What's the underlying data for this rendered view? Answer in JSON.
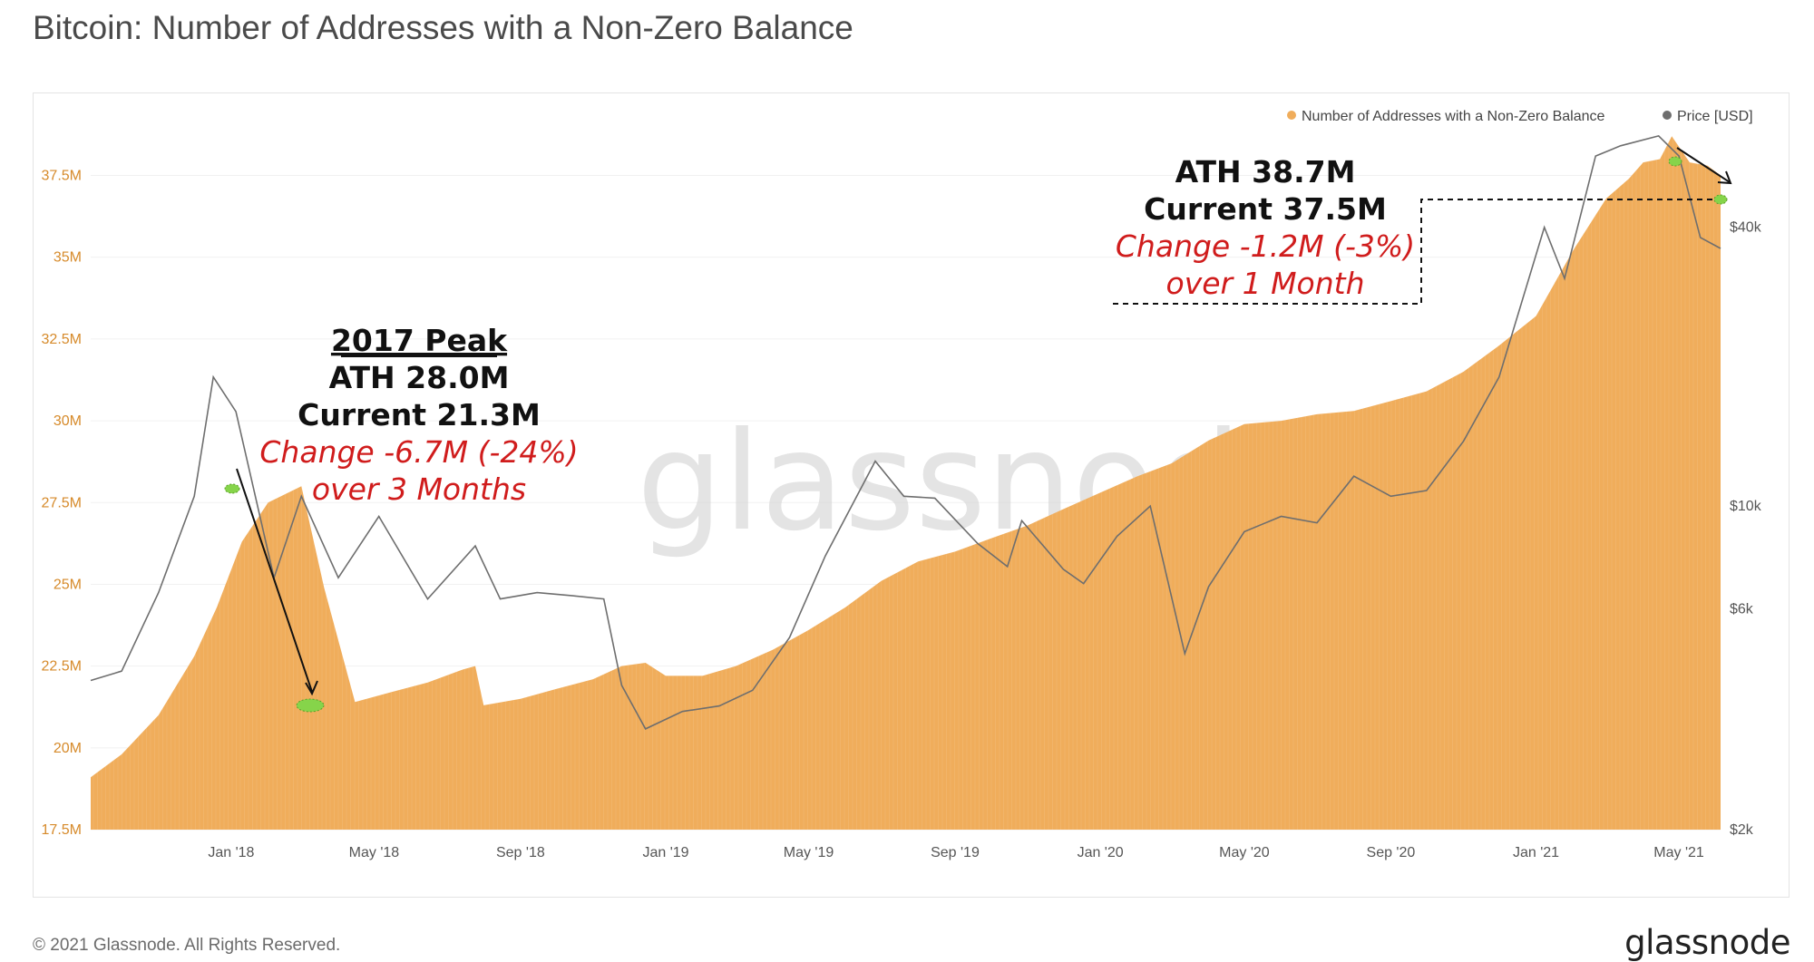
{
  "title": "Bitcoin: Number of Addresses with a Non-Zero Balance",
  "footer": {
    "copyright": "© 2021 Glassnode. All Rights Reserved.",
    "logo": "glassnode"
  },
  "watermark": "glassnode",
  "colors": {
    "area": "#f0ad5b",
    "price": "#6e6e6e",
    "marker": "#86d44a",
    "accent_red": "#d01c1c"
  },
  "chart_data": {
    "type": "area",
    "title": "Bitcoin: Number of Addresses with a Non-Zero Balance",
    "legend": {
      "position": "top-right",
      "items": [
        "Number of Addresses with a Non-Zero Balance",
        "Price [USD]"
      ]
    },
    "grid": true,
    "x_tick_labels": [
      "Jan '18",
      "May '18",
      "Sep '18",
      "Jan '19",
      "May '19",
      "Sep '19",
      "Jan '20",
      "May '20",
      "Sep '20",
      "Jan '21",
      "May '21"
    ],
    "y_left_tick_labels": [
      "17.5M",
      "20M",
      "22.5M",
      "25M",
      "27.5M",
      "30M",
      "32.5M",
      "35M",
      "37.5M"
    ],
    "y_left_range": [
      17500000,
      38900000
    ],
    "y_right_tick_labels": [
      "$2k",
      "$6k",
      "$10k",
      "$40k"
    ],
    "y_right_scale": "log",
    "y_right_range": [
      2000,
      65000
    ],
    "series": [
      {
        "name": "Number of Addresses with a Non-Zero Balance",
        "axis": "left",
        "x": [
          "2017-09-05",
          "2017-10-01",
          "2017-11-01",
          "2017-12-01",
          "2017-12-20",
          "2018-01-10",
          "2018-02-01",
          "2018-03-01",
          "2018-03-20",
          "2018-04-15",
          "2018-05-15",
          "2018-06-15",
          "2018-07-15",
          "2018-07-25",
          "2018-08-01",
          "2018-09-01",
          "2018-10-01",
          "2018-11-01",
          "2018-11-25",
          "2018-12-15",
          "2019-01-01",
          "2019-02-01",
          "2019-03-01",
          "2019-04-01",
          "2019-05-01",
          "2019-06-01",
          "2019-07-01",
          "2019-08-01",
          "2019-09-01",
          "2019-10-01",
          "2019-11-01",
          "2019-12-01",
          "2020-01-01",
          "2020-02-01",
          "2020-03-01",
          "2020-04-01",
          "2020-05-01",
          "2020-06-01",
          "2020-07-01",
          "2020-08-01",
          "2020-09-01",
          "2020-10-01",
          "2020-11-01",
          "2020-12-01",
          "2021-01-01",
          "2021-02-01",
          "2021-03-01",
          "2021-03-20",
          "2021-04-01",
          "2021-04-15",
          "2021-04-25",
          "2021-05-10",
          "2021-05-25",
          "2021-06-05"
        ],
        "values": [
          19100000,
          19800000,
          21000000,
          22800000,
          24300000,
          26300000,
          27500000,
          28000000,
          24900000,
          21400000,
          21700000,
          22000000,
          22400000,
          22500000,
          21300000,
          21500000,
          21800000,
          22100000,
          22500000,
          22600000,
          22200000,
          22200000,
          22500000,
          23000000,
          23600000,
          24300000,
          25100000,
          25700000,
          26000000,
          26400000,
          26800000,
          27300000,
          27800000,
          28300000,
          28700000,
          29400000,
          29900000,
          30000000,
          30200000,
          30300000,
          30600000,
          30900000,
          31500000,
          32300000,
          33200000,
          35200000,
          36800000,
          37400000,
          37900000,
          38000000,
          38700000,
          37900000,
          37800000,
          37500000
        ]
      },
      {
        "name": "Price [USD]",
        "axis": "right",
        "x": [
          "2017-09-05",
          "2017-10-01",
          "2017-11-01",
          "2017-12-01",
          "2017-12-17",
          "2018-01-05",
          "2018-02-06",
          "2018-03-01",
          "2018-04-01",
          "2018-05-05",
          "2018-06-15",
          "2018-07-25",
          "2018-08-15",
          "2018-09-15",
          "2018-10-15",
          "2018-11-10",
          "2018-11-25",
          "2018-12-15",
          "2019-01-15",
          "2019-02-15",
          "2019-03-15",
          "2019-04-15",
          "2019-05-15",
          "2019-06-26",
          "2019-07-20",
          "2019-08-15",
          "2019-09-20",
          "2019-10-15",
          "2019-10-27",
          "2019-12-01",
          "2019-12-18",
          "2020-01-15",
          "2020-02-12",
          "2020-03-12",
          "2020-04-01",
          "2020-05-01",
          "2020-06-01",
          "2020-07-01",
          "2020-08-01",
          "2020-09-01",
          "2020-10-01",
          "2020-11-01",
          "2020-12-01",
          "2021-01-08",
          "2021-01-25",
          "2021-02-20",
          "2021-03-13",
          "2021-04-14",
          "2021-05-01",
          "2021-05-19",
          "2021-06-05"
        ],
        "values": [
          4200,
          4400,
          6500,
          10500,
          19000,
          16000,
          7000,
          10500,
          7000,
          9500,
          6300,
          8200,
          6300,
          6500,
          6400,
          6300,
          4100,
          3300,
          3600,
          3700,
          4000,
          5200,
          7800,
          12500,
          10500,
          10400,
          8300,
          7400,
          9300,
          7300,
          6800,
          8600,
          10000,
          4800,
          6700,
          8800,
          9500,
          9200,
          11600,
          10500,
          10800,
          13800,
          19000,
          40000,
          31000,
          57000,
          60000,
          63000,
          57000,
          38000,
          36000
        ]
      }
    ],
    "annotations": [
      {
        "lines": [
          "2017 Peak",
          "ATH 28.0M",
          "Current 21.3M",
          "Change -6.7M (-24%)",
          "over 3 Months"
        ]
      },
      {
        "lines": [
          "ATH 38.7M",
          "Current 37.5M",
          "Change -1.2M (-3%)",
          "over 1 Month"
        ]
      }
    ]
  }
}
